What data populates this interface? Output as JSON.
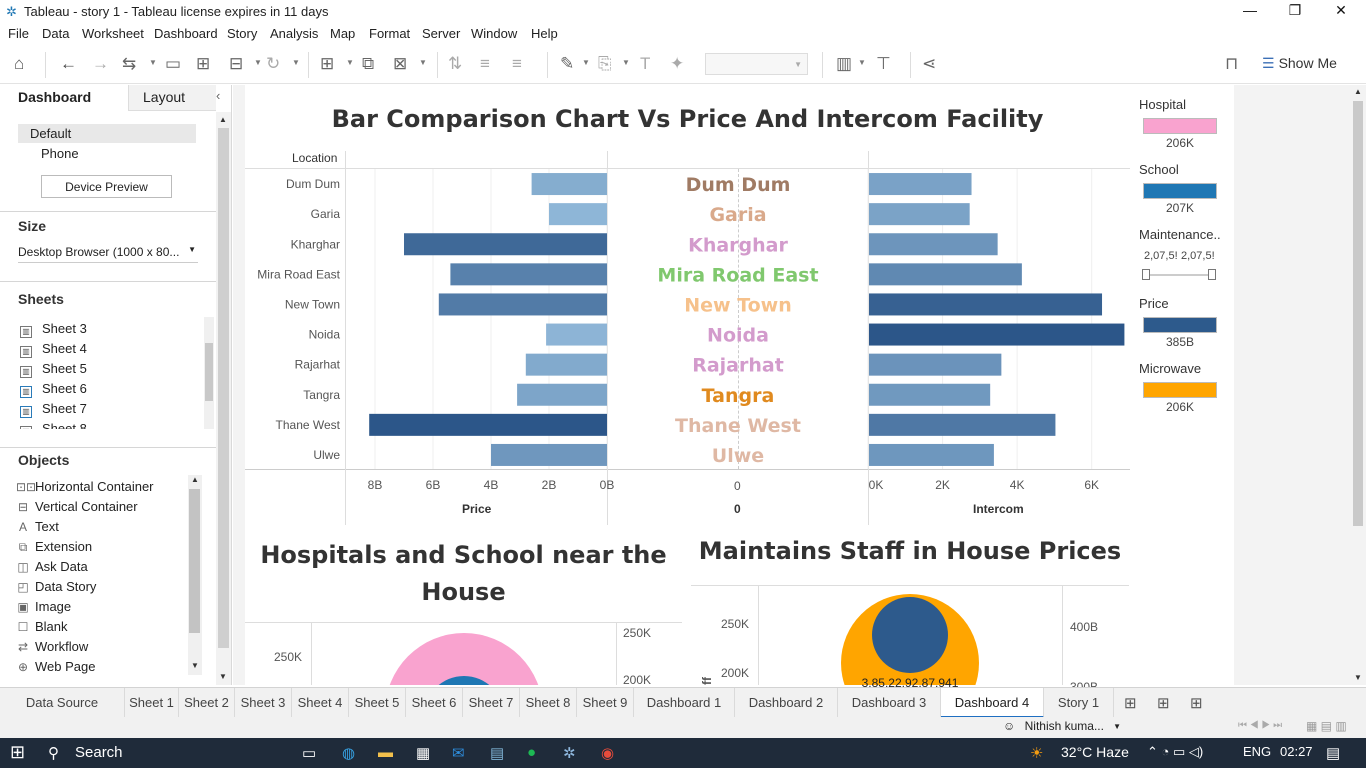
{
  "window": {
    "title": "Tableau - story 1 - Tableau license expires in 11 days",
    "minimize": "—",
    "restore": "❐",
    "close": "✕"
  },
  "menu": [
    "File",
    "Data",
    "Worksheet",
    "Dashboard",
    "Story",
    "Analysis",
    "Map",
    "Format",
    "Server",
    "Window",
    "Help"
  ],
  "toolbar": {
    "show_me": "Show Me"
  },
  "left_pane": {
    "tabs": [
      "Dashboard",
      "Layout"
    ],
    "devices": [
      "Default",
      "Phone"
    ],
    "device_preview": "Device Preview",
    "size_header": "Size",
    "size_value": "Desktop Browser (1000 x 80...",
    "sheets_header": "Sheets",
    "sheets": [
      "Sheet 3",
      "Sheet 4",
      "Sheet 5",
      "Sheet 6",
      "Sheet 7",
      "Sheet 8"
    ],
    "objects_header": "Objects",
    "objects": [
      {
        "icon": "horizontal-container-icon",
        "glyph": "⊡⊡",
        "label": "Horizontal Container"
      },
      {
        "icon": "vertical-container-icon",
        "glyph": "⊟",
        "label": "Vertical Container"
      },
      {
        "icon": "text-icon",
        "glyph": "A",
        "label": "Text"
      },
      {
        "icon": "extension-icon",
        "glyph": "⧉",
        "label": "Extension"
      },
      {
        "icon": "ask-data-icon",
        "glyph": "◫",
        "label": "Ask Data"
      },
      {
        "icon": "data-story-icon",
        "glyph": "◰",
        "label": "Data Story"
      },
      {
        "icon": "image-icon",
        "glyph": "▣",
        "label": "Image"
      },
      {
        "icon": "blank-icon",
        "glyph": "☐",
        "label": "Blank"
      },
      {
        "icon": "workflow-icon",
        "glyph": "⇄",
        "label": "Workflow"
      },
      {
        "icon": "web-page-icon",
        "glyph": "⊕",
        "label": "Web Page"
      }
    ]
  },
  "dashboard": {
    "title": "Bar Comparison Chart Vs Price And Intercom Facility",
    "location_header": "Location",
    "price_axis_title": "Price",
    "center_axis_title": "0",
    "center_tick": "0",
    "intercom_axis_title": "Intercom",
    "price_ticks": [
      "8B",
      "6B",
      "4B",
      "2B",
      "0B"
    ],
    "intercom_ticks": [
      "0K",
      "2K",
      "4K",
      "6K"
    ],
    "chart2_title": "Hospitals and School near the House",
    "chart2_ticks": [
      "250K",
      "200K"
    ],
    "chart2_right_ticks": [
      "250K",
      "200K"
    ],
    "chart3_title": "Maintains Staff in House Prices",
    "chart3_ticks": [
      "250K",
      "200K"
    ],
    "chart3_right_ticks": [
      "400B",
      "300B"
    ],
    "chart3_label": "3,85,22,92,87,941",
    "chart3_axis_fragment": "ff"
  },
  "chart_data": [
    {
      "type": "bar",
      "title": "Bar Comparison Chart Vs Price And Intercom Facility",
      "categories": [
        "Dum Dum",
        "Garia",
        "Kharghar",
        "Mira Road East",
        "New Town",
        "Noida",
        "Rajarhat",
        "Tangra",
        "Thane West",
        "Ulwe"
      ],
      "category_colors": [
        "#a07b64",
        "#d9a98b",
        "#d39bcc",
        "#80c86e",
        "#f6c18b",
        "#d39bcc",
        "#d39bcc",
        "#e08a1f",
        "#dfb8a4",
        "#dfb8a4"
      ],
      "series": [
        {
          "name": "Price",
          "values": [
            2.6,
            2.0,
            7.0,
            5.4,
            5.8,
            2.1,
            2.8,
            3.1,
            8.2,
            4.0
          ],
          "unit": "B",
          "xlim": [
            9,
            0
          ]
        },
        {
          "name": "Intercom",
          "values": [
            2750,
            2700,
            3450,
            4100,
            6250,
            6850,
            3550,
            3250,
            5000,
            3350
          ],
          "unit": "K",
          "xlim": [
            0,
            7000
          ]
        }
      ]
    }
  ],
  "legend": [
    {
      "title": "Hospital",
      "color": "#f9a3cf",
      "value": "206K"
    },
    {
      "title": "School",
      "color": "#1f77b4",
      "value": "207K"
    },
    {
      "title": "Maintenance..",
      "range_left": "2,07,5!",
      "range_right": "2,07,5!"
    },
    {
      "title": "Price",
      "color": "#2d5a8c",
      "value": "385B"
    },
    {
      "title": "Microwave",
      "color": "#ffa500",
      "value": "206K"
    }
  ],
  "sheet_tabs": [
    "Data Source",
    "Sheet 1",
    "Sheet 2",
    "Sheet 3",
    "Sheet 4",
    "Sheet 5",
    "Sheet 6",
    "Sheet 7",
    "Sheet 8",
    "Sheet 9",
    "Dashboard 1",
    "Dashboard 2",
    "Dashboard 3",
    "Dashboard 4",
    "Story 1"
  ],
  "status": {
    "user": "Nithish kuma..."
  },
  "taskbar": {
    "search": "Search",
    "weather": "32°C  Haze",
    "lang": "ENG",
    "time": "02:27"
  }
}
